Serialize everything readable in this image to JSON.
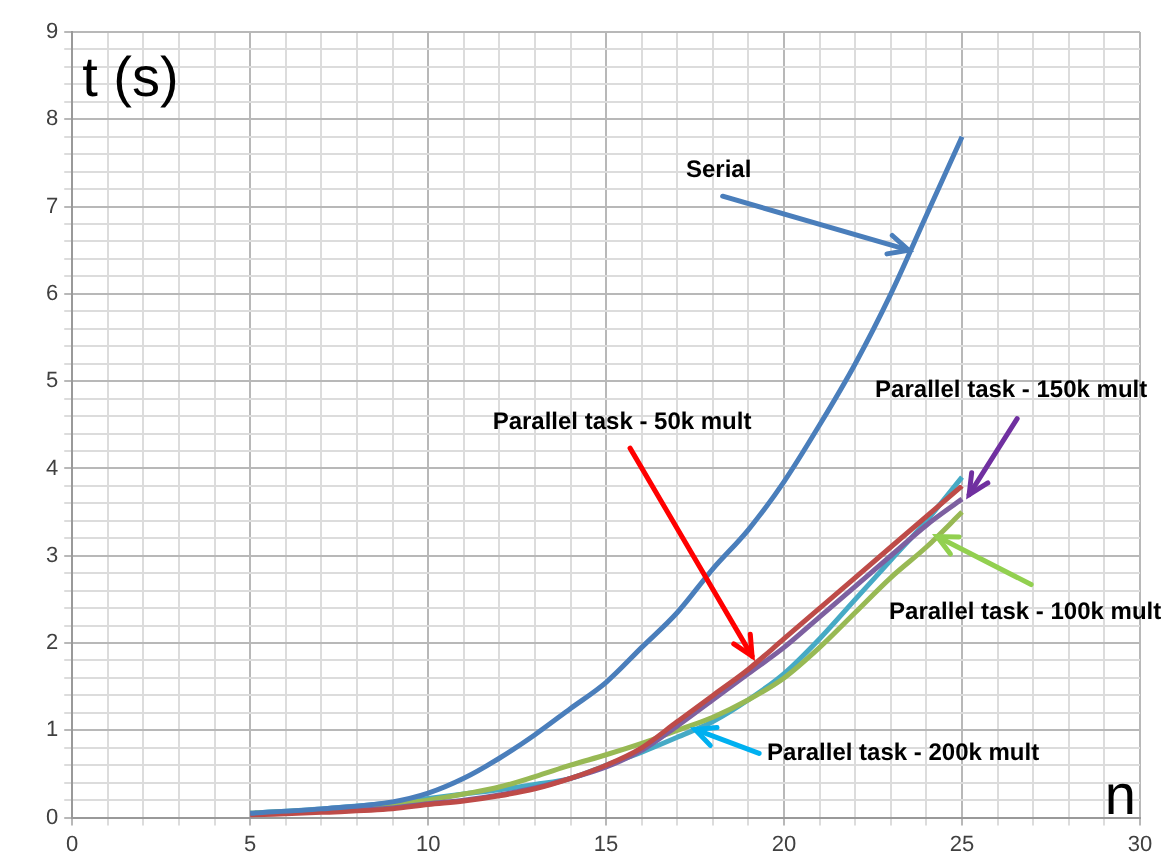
{
  "chart_data": {
    "type": "line",
    "xlabel": "n",
    "ylabel": "t (s)",
    "xlim": [
      0,
      30
    ],
    "ylim": [
      0,
      9
    ],
    "xticks": [
      0,
      {
        "value": 1,
        "label": null
      },
      {
        "value": 2,
        "label": null
      },
      {
        "value": 3,
        "label": null
      },
      {
        "value": 4,
        "label": null
      },
      5,
      {
        "value": 6,
        "label": null
      },
      {
        "value": 7,
        "label": null
      },
      {
        "value": 8,
        "label": null
      },
      {
        "value": 9,
        "label": null
      },
      10,
      {
        "value": 11,
        "label": null
      },
      {
        "value": 12,
        "label": null
      },
      {
        "value": 13,
        "label": null
      },
      {
        "value": 14,
        "label": null
      },
      15,
      {
        "value": 16,
        "label": null
      },
      {
        "value": 17,
        "label": null
      },
      {
        "value": 18,
        "label": null
      },
      {
        "value": 19,
        "label": null
      },
      20,
      {
        "value": 21,
        "label": null
      },
      {
        "value": 22,
        "label": null
      },
      {
        "value": 23,
        "label": null
      },
      {
        "value": 24,
        "label": null
      },
      25,
      {
        "value": 26,
        "label": null
      },
      {
        "value": 27,
        "label": null
      },
      {
        "value": 28,
        "label": null
      },
      {
        "value": 29,
        "label": null
      },
      30
    ],
    "yticks": [
      0,
      {
        "value": 0.2,
        "label": null
      },
      {
        "value": 0.4,
        "label": null
      },
      {
        "value": 0.6,
        "label": null
      },
      {
        "value": 0.8,
        "label": null
      },
      1,
      {
        "value": 1.2,
        "label": null
      },
      {
        "value": 1.4,
        "label": null
      },
      {
        "value": 1.6,
        "label": null
      },
      {
        "value": 1.8,
        "label": null
      },
      2,
      {
        "value": 2.2,
        "label": null
      },
      {
        "value": 2.4,
        "label": null
      },
      {
        "value": 2.6,
        "label": null
      },
      {
        "value": 2.8,
        "label": null
      },
      3,
      {
        "value": 3.2,
        "label": null
      },
      {
        "value": 3.4,
        "label": null
      },
      {
        "value": 3.6,
        "label": null
      },
      {
        "value": 3.8,
        "label": null
      },
      4,
      {
        "value": 4.2,
        "label": null
      },
      {
        "value": 4.4,
        "label": null
      },
      {
        "value": 4.6,
        "label": null
      },
      {
        "value": 4.8,
        "label": null
      },
      5,
      {
        "value": 5.2,
        "label": null
      },
      {
        "value": 5.4,
        "label": null
      },
      {
        "value": 5.6,
        "label": null
      },
      {
        "value": 5.8,
        "label": null
      },
      6,
      {
        "value": 6.2,
        "label": null
      },
      {
        "value": 6.4,
        "label": null
      },
      {
        "value": 6.6,
        "label": null
      },
      {
        "value": 6.8,
        "label": null
      },
      7,
      {
        "value": 7.2,
        "label": null
      },
      {
        "value": 7.4,
        "label": null
      },
      {
        "value": 7.6,
        "label": null
      },
      {
        "value": 7.8,
        "label": null
      },
      8,
      {
        "value": 8.2,
        "label": null
      },
      {
        "value": 8.4,
        "label": null
      },
      {
        "value": 8.6,
        "label": null
      },
      {
        "value": 8.8,
        "label": null
      },
      9
    ],
    "grid": true,
    "legend": false,
    "marker": "none",
    "line_style": "solid",
    "x": [
      5,
      7,
      9,
      10,
      11,
      12,
      13,
      14,
      15,
      16,
      17,
      18,
      19,
      20,
      21,
      22,
      23,
      24,
      25
    ],
    "series": [
      {
        "color": "#4a7ebb",
        "values": [
          0.05,
          0.1,
          0.18,
          0.28,
          0.45,
          0.68,
          0.95,
          1.25,
          1.55,
          1.95,
          2.35,
          2.85,
          3.3,
          3.85,
          4.5,
          5.2,
          6.0,
          6.9,
          7.8
        ]
      },
      {
        "color": "#be4b48",
        "values": [
          0.03,
          0.06,
          0.1,
          0.15,
          0.19,
          0.25,
          0.33,
          0.45,
          0.6,
          0.8,
          1.1,
          1.4,
          1.7,
          2.05,
          2.4,
          2.75,
          3.1,
          3.45,
          3.8
        ]
      },
      {
        "color": "#7d60a0",
        "values": [
          0.04,
          0.07,
          0.11,
          0.16,
          0.2,
          0.26,
          0.34,
          0.45,
          0.58,
          0.77,
          1.05,
          1.35,
          1.65,
          1.95,
          2.3,
          2.65,
          3.0,
          3.35,
          3.65
        ]
      },
      {
        "color": "#98b954",
        "values": [
          0.05,
          0.09,
          0.15,
          0.2,
          0.27,
          0.35,
          0.47,
          0.6,
          0.72,
          0.85,
          1.0,
          1.15,
          1.35,
          1.6,
          1.95,
          2.35,
          2.75,
          3.1,
          3.5
        ]
      },
      {
        "color": "#46aac5",
        "values": [
          0.05,
          0.1,
          0.17,
          0.22,
          0.27,
          0.32,
          0.38,
          0.45,
          0.6,
          0.75,
          0.92,
          1.1,
          1.35,
          1.65,
          2.05,
          2.5,
          2.95,
          3.4,
          3.9
        ]
      }
    ],
    "annotations": [
      {
        "text": "Serial",
        "x": 23.5,
        "y": 6.5
      },
      {
        "text": "Parallel task - 50k mult",
        "x": 19.1,
        "y": 1.85
      },
      {
        "text": "Parallel task - 150k mult",
        "x": 25.2,
        "y": 3.7
      },
      {
        "text": "Parallel task - 100k mult",
        "x": 24.3,
        "y": 3.22
      },
      {
        "text": "Parallel task - 200k mult",
        "x": 17.5,
        "y": 1.01
      }
    ]
  }
}
